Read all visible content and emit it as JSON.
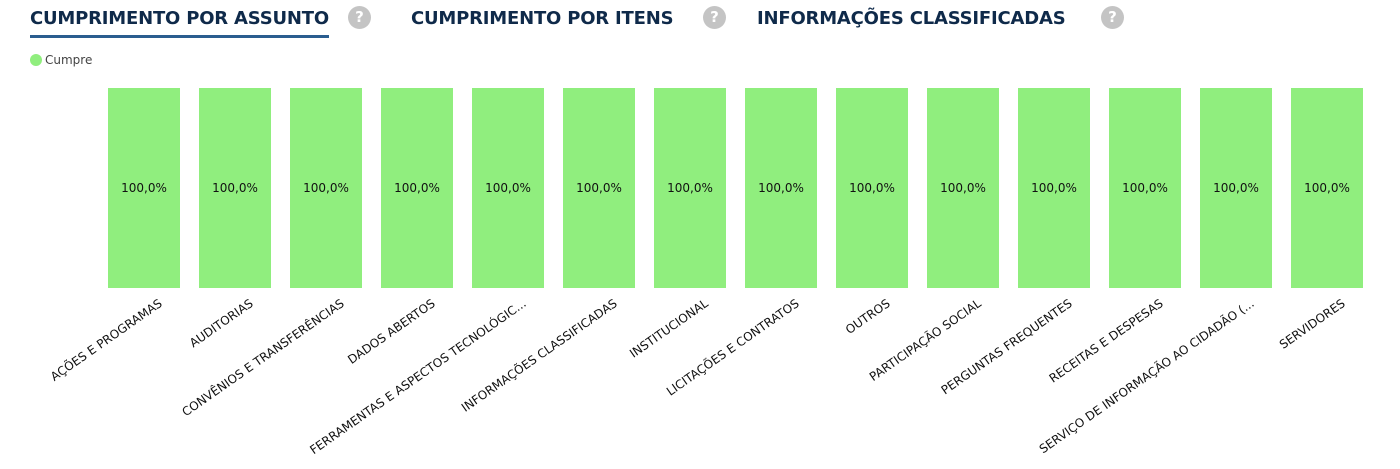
{
  "tabs": [
    {
      "label": "CUMPRIMENTO POR ASSUNTO",
      "help": "?",
      "active": true
    },
    {
      "label": "CUMPRIMENTO POR ITENS",
      "help": "?",
      "active": false
    },
    {
      "label": "INFORMAÇÕES CLASSIFICADAS",
      "help": "?",
      "active": false
    }
  ],
  "colors": {
    "bar": "#90ee7e",
    "tab_text": "#0f2a4a",
    "tab_underline": "#2a5d8f",
    "help_icon": "#c4c4c4"
  },
  "chart_data": {
    "type": "bar",
    "title": "",
    "xlabel": "",
    "ylabel": "",
    "ylim": [
      0,
      100
    ],
    "grid": false,
    "legend_position": "top-left",
    "categories": [
      "AÇÕES E PROGRAMAS",
      "AUDITORIAS",
      "CONVÊNIOS E TRANSFERÊNCIAS",
      "DADOS ABERTOS",
      "FERRAMENTAS E ASPECTOS TECNOLÓGIC...",
      "INFORMAÇÕES CLASSIFICADAS",
      "INSTITUCIONAL",
      "LICITAÇÕES E CONTRATOS",
      "OUTROS",
      "PARTICIPAÇÃO SOCIAL",
      "PERGUNTAS FREQUENTES",
      "RECEITAS E DESPESAS",
      "SERVIÇO DE INFORMAÇÃO AO CIDADÃO (...",
      "SERVIDORES"
    ],
    "series": [
      {
        "name": "Cumpre",
        "color": "#90ee7e",
        "values": [
          100,
          100,
          100,
          100,
          100,
          100,
          100,
          100,
          100,
          100,
          100,
          100,
          100,
          100
        ],
        "labels": [
          "100,0%",
          "100,0%",
          "100,0%",
          "100,0%",
          "100,0%",
          "100,0%",
          "100,0%",
          "100,0%",
          "100,0%",
          "100,0%",
          "100,0%",
          "100,0%",
          "100,0%",
          "100,0%"
        ]
      }
    ]
  }
}
